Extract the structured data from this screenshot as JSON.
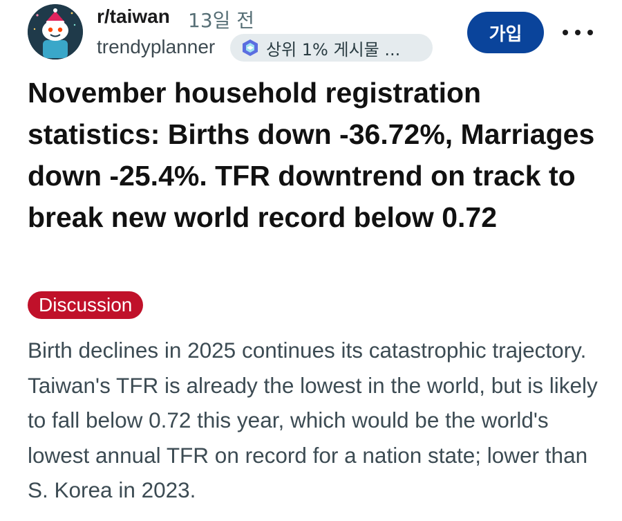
{
  "post": {
    "subreddit": "r/taiwan",
    "time_ago": "13일 전",
    "author": "trendyplanner",
    "badge_label": "상위 1% 게시물 ...",
    "join_label": "가입",
    "title": "November household registration statistics: Births down -36.72%, Marriages down -25.4%. TFR downtrend on track to break new world record below 0.72",
    "flair": "Discussion",
    "body": "Birth declines in 2025 continues its catastrophic trajectory. Taiwan's TFR is already the lowest in the world, but is likely to fall below 0.72 this year, which would be the world's lowest annual TFR on record for a nation state; lower than S. Korea in 2023."
  },
  "icons": {
    "avatar": "reddit-snoo-avatar",
    "badge": "top-contributor-icon",
    "more": "more-options-icon"
  },
  "colors": {
    "join_button": "#0a449b",
    "flair_background": "#c0112a",
    "badge_background": "#e5ebee"
  }
}
